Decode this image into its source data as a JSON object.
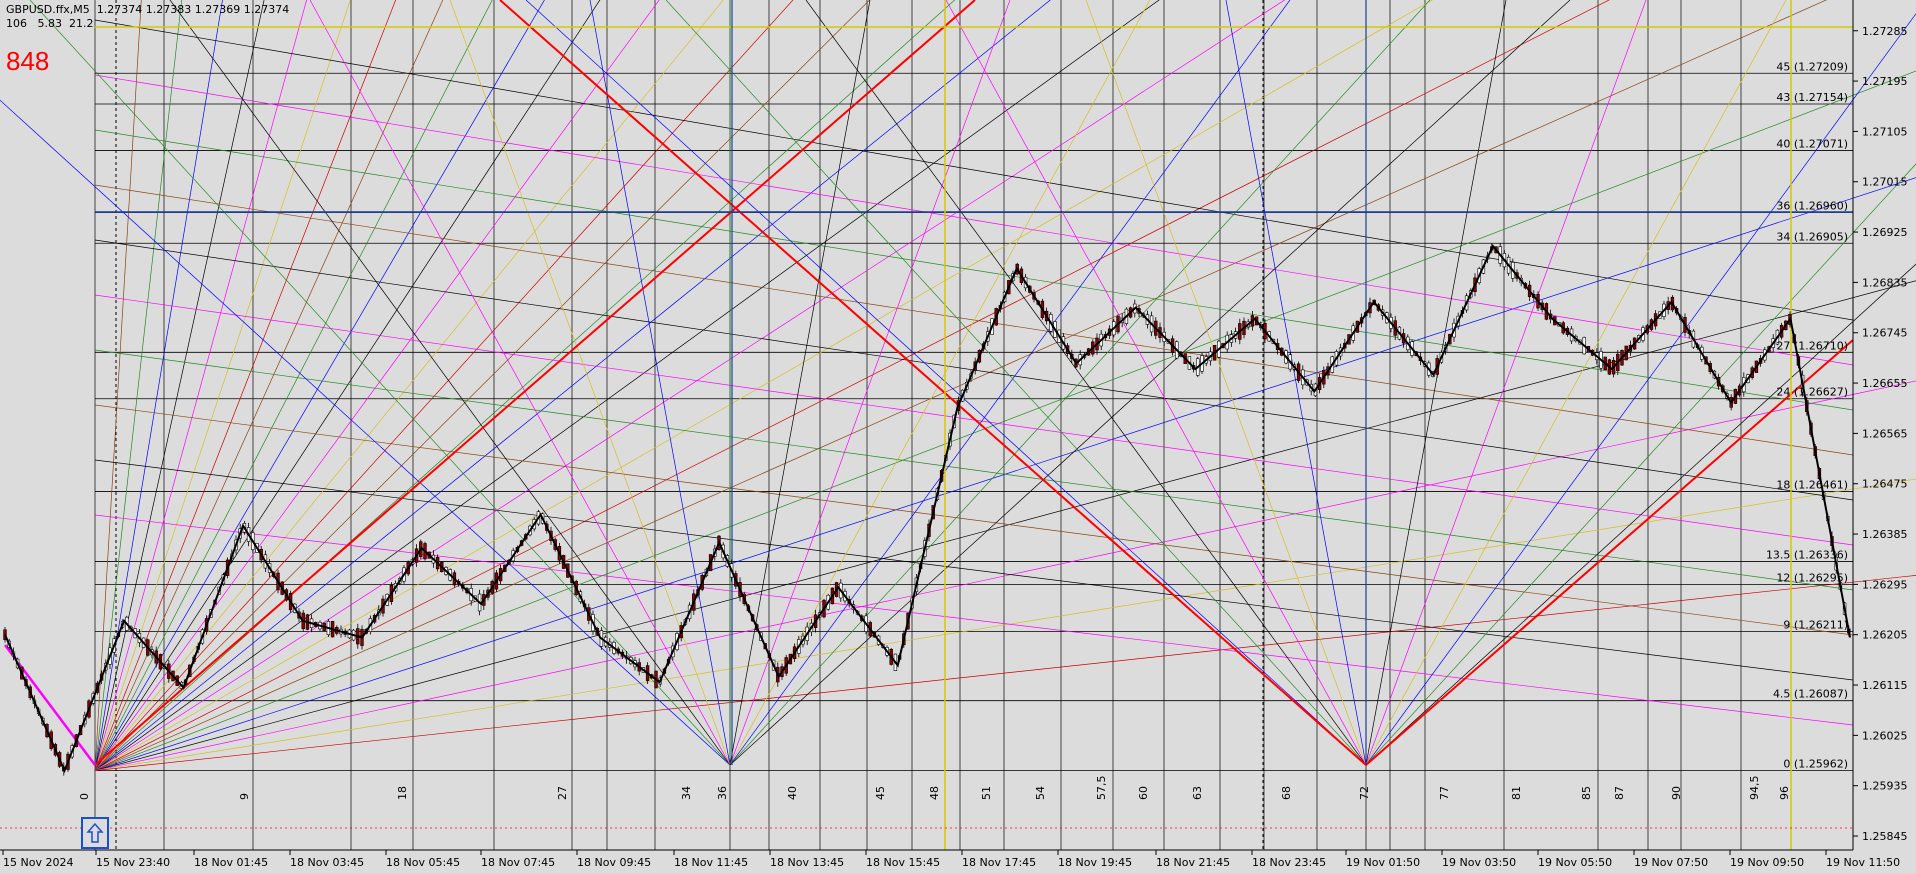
{
  "header": {
    "line1": "GBPUSD.ffx,M5  1.27374 1.27383 1.27369 1.27374",
    "line2": "106   5.83  21.2",
    "big_number": "848"
  },
  "colors": {
    "background": "#dcdcdc",
    "grid": "#000000",
    "red": "#ff0000",
    "blue_h": "#1a3f9a",
    "yellow": "#d8c800",
    "fan": [
      "#8b4513",
      "#228b22",
      "#0000ff",
      "#000000",
      "#ff00ff",
      "#d4c020",
      "#cc0000"
    ]
  },
  "chart_data": {
    "type": "line",
    "symbol": "GBPUSD.ffx",
    "timeframe": "M5",
    "ohlc": {
      "open": 1.27374,
      "high": 1.27383,
      "low": 1.27369,
      "close": 1.27374
    },
    "price_axis": {
      "ticks": [
        "1.27285",
        "1.27195",
        "1.27105",
        "1.27015",
        "1.26925",
        "1.26835",
        "1.26745",
        "1.26655",
        "1.26565",
        "1.26475",
        "1.26385",
        "1.26295",
        "1.26205",
        "1.26115",
        "1.26025",
        "1.25935",
        "1.25845"
      ],
      "range": [
        1.2582,
        1.2734
      ]
    },
    "time_axis": {
      "labels": [
        "15 Nov 2024",
        "15 Nov 23:40",
        "18 Nov 01:45",
        "18 Nov 03:45",
        "18 Nov 05:45",
        "18 Nov 07:45",
        "18 Nov 09:45",
        "18 Nov 11:45",
        "18 Nov 13:45",
        "18 Nov 15:45",
        "18 Nov 17:45",
        "18 Nov 19:45",
        "18 Nov 21:45",
        "18 Nov 23:45",
        "19 Nov 01:50",
        "19 Nov 03:50",
        "19 Nov 05:50",
        "19 Nov 07:50",
        "19 Nov 09:50",
        "19 Nov 11:50"
      ]
    },
    "levels": [
      {
        "label": "45 (1.27209)",
        "price": 1.27209
      },
      {
        "label": "43 (1.27154)",
        "price": 1.27154
      },
      {
        "label": "40 (1.27071)",
        "price": 1.27071
      },
      {
        "label": "36 (1.26960)",
        "price": 1.2696
      },
      {
        "label": "34 (1.26905)",
        "price": 1.26905
      },
      {
        "label": "27 (1.26710)",
        "price": 1.2671
      },
      {
        "label": "24 (1.26627)",
        "price": 1.26627
      },
      {
        "label": "18 (1.26461)",
        "price": 1.26461
      },
      {
        "label": "13.5 (1.26336)",
        "price": 1.26336
      },
      {
        "label": "12 (1.26295)",
        "price": 1.26295
      },
      {
        "label": "9 (1.26211)",
        "price": 1.26211
      },
      {
        "label": "4.5 (1.26087)",
        "price": 1.26087
      },
      {
        "label": "0 (1.25962)",
        "price": 1.25962
      }
    ],
    "bottom_numbers": [
      "0",
      "9",
      "18",
      "27",
      "34",
      "36",
      "40",
      "45",
      "48",
      "51",
      "54",
      "57,5",
      "60",
      "63",
      "68",
      "72",
      "77",
      "81",
      "85",
      "87",
      "90",
      "94,5",
      "96"
    ],
    "zigzag": [
      1.26205,
      1.25962,
      1.2623,
      1.2611,
      1.264,
      1.2623,
      1.262,
      1.2636,
      1.2626,
      1.2642,
      1.262,
      1.2612,
      1.2637,
      1.2613,
      1.2629,
      1.2615,
      1.2661,
      1.2686,
      1.2669,
      1.2679,
      1.2668,
      1.2677,
      1.2664,
      1.268,
      1.2667,
      1.269,
      1.2677,
      1.2668,
      1.268,
      1.2662,
      1.2677,
      1.262
    ]
  }
}
